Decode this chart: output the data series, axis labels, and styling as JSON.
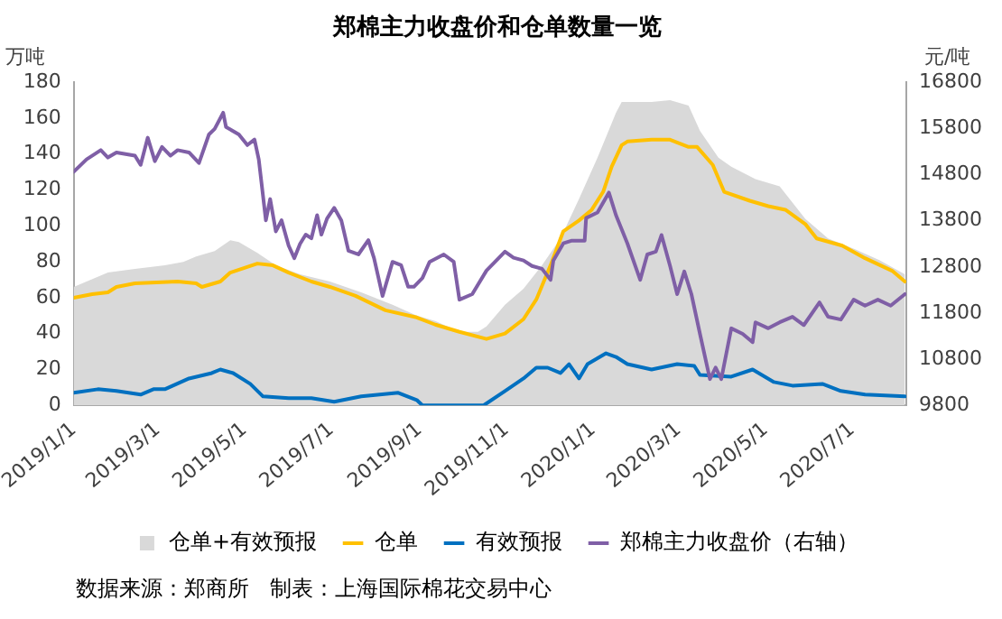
{
  "chart_data": {
    "type": "line",
    "title": "郑棉主力收盘价和仓单数量一览",
    "ylabel": "万吨",
    "y2label": "元/吨",
    "xlim": [
      "2019-01-01",
      "2020-08-08"
    ],
    "xticks": [
      {
        "value": "2019-01-01",
        "label": "2019/1/1"
      },
      {
        "value": "2019-03-01",
        "label": "2019/3/1"
      },
      {
        "value": "2019-05-01",
        "label": "2019/5/1"
      },
      {
        "value": "2019-07-01",
        "label": "2019/7/1"
      },
      {
        "value": "2019-09-01",
        "label": "2019/9/1"
      },
      {
        "value": "2019-11-01",
        "label": "2019/11/1"
      },
      {
        "value": "2020-01-01",
        "label": "2020/1/1"
      },
      {
        "value": "2020-03-01",
        "label": "2020/3/1"
      },
      {
        "value": "2020-05-01",
        "label": "2020/5/1"
      },
      {
        "value": "2020-07-01",
        "label": "2020/7/1"
      }
    ],
    "ylim": [
      0,
      180
    ],
    "yticks": [
      0,
      20,
      40,
      60,
      80,
      100,
      120,
      140,
      160,
      180
    ],
    "y2lim": [
      9800,
      16800
    ],
    "y2ticks": [
      9800,
      10800,
      11800,
      12800,
      13800,
      14800,
      15800,
      16800
    ],
    "grid": false,
    "legend": "bottom",
    "marker": "none",
    "line_style": "solid",
    "series": [
      {
        "name": "仓单+有效预报",
        "type": "area",
        "color": "#d9d9d9",
        "x": [
          "2019-01-01",
          "2019-01-10",
          "2019-01-25",
          "2019-02-13",
          "2019-03-06",
          "2019-03-19",
          "2019-03-28",
          "2019-04-10",
          "2019-04-21",
          "2019-04-27",
          "2019-05-10",
          "2019-05-23",
          "2019-06-09",
          "2019-06-30",
          "2019-07-22",
          "2019-08-13",
          "2019-08-30",
          "2019-09-12",
          "2019-09-29",
          "2019-10-12",
          "2019-10-18",
          "2019-10-31",
          "2019-11-13",
          "2019-11-26",
          "2019-12-09",
          "2019-12-22",
          "2020-01-04",
          "2020-01-17",
          "2020-01-21",
          "2020-02-11",
          "2020-02-24",
          "2020-03-08",
          "2020-03-16",
          "2020-03-29",
          "2020-04-07",
          "2020-04-24",
          "2020-05-11",
          "2020-05-29",
          "2020-06-14",
          "2020-07-03",
          "2020-07-20",
          "2020-08-07"
        ],
        "values": [
          66,
          69,
          74,
          76,
          78,
          80,
          83,
          86,
          92,
          91,
          85,
          78,
          73,
          69,
          63,
          56,
          50,
          47,
          41,
          41,
          44,
          56,
          65,
          78,
          93,
          115,
          138,
          163,
          169,
          169,
          170,
          167,
          153,
          138,
          133,
          126,
          122,
          104,
          93,
          87,
          81,
          73
        ]
      },
      {
        "name": "仓单",
        "color": "#ffc000",
        "x": [
          "2019-01-01",
          "2019-01-14",
          "2019-01-25",
          "2019-01-31",
          "2019-02-13",
          "2019-03-15",
          "2019-03-28",
          "2019-04-01",
          "2019-04-14",
          "2019-04-21",
          "2019-05-10",
          "2019-05-21",
          "2019-06-01",
          "2019-06-17",
          "2019-06-30",
          "2019-07-18",
          "2019-08-08",
          "2019-08-30",
          "2019-09-12",
          "2019-09-29",
          "2019-10-18",
          "2019-10-31",
          "2019-11-13",
          "2019-11-22",
          "2019-12-02",
          "2019-12-11",
          "2019-12-22",
          "2019-12-31",
          "2020-01-08",
          "2020-01-14",
          "2020-01-21",
          "2020-01-25",
          "2020-02-11",
          "2020-02-24",
          "2020-03-08",
          "2020-03-14",
          "2020-03-25",
          "2020-04-02",
          "2020-04-20",
          "2020-05-03",
          "2020-05-15",
          "2020-05-29",
          "2020-06-06",
          "2020-06-24",
          "2020-07-10",
          "2020-07-29",
          "2020-08-07"
        ],
        "values": [
          60,
          62,
          63,
          66,
          68,
          69,
          68,
          66,
          69,
          74,
          79,
          78,
          74,
          69,
          66,
          61,
          53,
          49,
          45,
          41,
          37,
          40,
          48,
          59,
          78,
          97,
          103,
          109,
          119,
          133,
          145,
          147,
          148,
          148,
          144,
          144,
          134,
          119,
          114,
          111,
          109,
          101,
          93,
          89,
          82,
          75,
          69
        ]
      },
      {
        "name": "有效预报",
        "color": "#0070c0",
        "x": [
          "2019-01-01",
          "2019-01-18",
          "2019-01-31",
          "2019-02-17",
          "2019-02-26",
          "2019-03-06",
          "2019-03-23",
          "2019-04-08",
          "2019-04-14",
          "2019-04-23",
          "2019-05-05",
          "2019-05-14",
          "2019-06-01",
          "2019-06-17",
          "2019-07-03",
          "2019-07-22",
          "2019-08-17",
          "2019-08-30",
          "2019-09-03",
          "2019-10-16",
          "2019-10-31",
          "2019-11-13",
          "2019-11-22",
          "2019-11-30",
          "2019-12-09",
          "2019-12-15",
          "2019-12-22",
          "2019-12-28",
          "2020-01-10",
          "2020-01-17",
          "2020-01-25",
          "2020-02-11",
          "2020-02-29",
          "2020-03-12",
          "2020-03-16",
          "2020-04-07",
          "2020-04-22",
          "2020-05-07",
          "2020-05-20",
          "2020-06-10",
          "2020-06-23",
          "2020-07-10",
          "2020-08-07"
        ],
        "values": [
          7,
          9,
          8,
          6,
          9,
          9,
          15,
          18,
          20,
          18,
          12,
          5,
          4,
          4,
          2,
          5,
          7,
          3,
          0,
          0,
          8,
          15,
          21,
          21,
          18,
          23,
          15,
          23,
          29,
          27,
          23,
          20,
          23,
          22,
          17,
          16,
          20,
          13,
          11,
          12,
          8,
          6,
          5
        ]
      },
      {
        "name": "郑棉主力收盘价（右轴）",
        "axis": "y2",
        "color": "#7f5fa6",
        "x": [
          "2019-01-01",
          "2019-01-10",
          "2019-01-20",
          "2019-01-25",
          "2019-01-31",
          "2019-02-13",
          "2019-02-17",
          "2019-02-22",
          "2019-02-27",
          "2019-03-04",
          "2019-03-10",
          "2019-03-15",
          "2019-03-23",
          "2019-03-30",
          "2019-04-06",
          "2019-04-10",
          "2019-04-16",
          "2019-04-18",
          "2019-04-27",
          "2019-05-03",
          "2019-05-08",
          "2019-05-11",
          "2019-05-16",
          "2019-05-19",
          "2019-05-23",
          "2019-05-27",
          "2019-06-01",
          "2019-06-05",
          "2019-06-09",
          "2019-06-13",
          "2019-06-17",
          "2019-06-21",
          "2019-06-24",
          "2019-06-28",
          "2019-07-03",
          "2019-07-08",
          "2019-07-13",
          "2019-07-20",
          "2019-07-27",
          "2019-07-31",
          "2019-08-06",
          "2019-08-13",
          "2019-08-19",
          "2019-08-24",
          "2019-08-28",
          "2019-09-03",
          "2019-09-08",
          "2019-09-18",
          "2019-09-25",
          "2019-09-29",
          "2019-10-08",
          "2019-10-18",
          "2019-10-31",
          "2019-11-06",
          "2019-11-13",
          "2019-11-19",
          "2019-11-26",
          "2019-12-02",
          "2019-12-04",
          "2019-12-11",
          "2019-12-17",
          "2019-12-26",
          "2019-12-27",
          "2020-01-04",
          "2020-01-12",
          "2020-01-17",
          "2020-01-25",
          "2020-02-03",
          "2020-02-08",
          "2020-02-14",
          "2020-02-18",
          "2020-02-24",
          "2020-02-29",
          "2020-03-05",
          "2020-03-10",
          "2020-03-16",
          "2020-03-23",
          "2020-03-27",
          "2020-03-31",
          "2020-04-07",
          "2020-04-15",
          "2020-04-22",
          "2020-04-24",
          "2020-05-03",
          "2020-05-11",
          "2020-05-20",
          "2020-05-28",
          "2020-06-08",
          "2020-06-14",
          "2020-06-23",
          "2020-07-02",
          "2020-07-10",
          "2020-07-19",
          "2020-07-28",
          "2020-08-07"
        ],
        "values": [
          14860,
          15130,
          15330,
          15170,
          15280,
          15210,
          15010,
          15600,
          15090,
          15400,
          15210,
          15330,
          15280,
          15050,
          15670,
          15790,
          16140,
          15830,
          15670,
          15440,
          15560,
          15130,
          13810,
          14270,
          13570,
          13810,
          13260,
          12990,
          13300,
          13500,
          13420,
          13920,
          13500,
          13850,
          14080,
          13810,
          13150,
          13070,
          13380,
          12990,
          12170,
          12910,
          12840,
          12370,
          12370,
          12560,
          12910,
          13070,
          12910,
          12090,
          12210,
          12720,
          13130,
          13000,
          12940,
          12820,
          12760,
          12520,
          12940,
          13310,
          13370,
          13370,
          13860,
          13980,
          14410,
          13920,
          13310,
          12520,
          13070,
          13130,
          13490,
          12820,
          12210,
          12700,
          12210,
          11350,
          10370,
          10620,
          10370,
          11470,
          11350,
          11170,
          11600,
          11470,
          11600,
          11720,
          11540,
          12030,
          11720,
          11660,
          12090,
          11960,
          12090,
          11960,
          12210
        ]
      }
    ],
    "annotations": [
      "数据来源：郑商所   制表：上海国际棉花交易中心"
    ]
  }
}
